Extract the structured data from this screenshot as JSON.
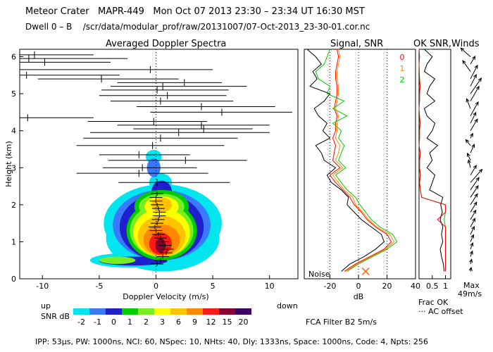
{
  "header": {
    "site": "Meteor Crater",
    "instrument": "MAPR-449",
    "datetime": "Mon Oct 07 2013 23:30 – 23:34 UT 16:30 MST",
    "dwell": "Dwell  0 –  B",
    "path": "/scr/data/modular_prof/raw/20131007/07-Oct-2013_23-30-01.cor.nc"
  },
  "panels": {
    "spectra_title": "Averaged Doppler Spectra",
    "snr_title": "Signal, SNR",
    "ok_title": "OK SNR,Winds"
  },
  "footer": {
    "snr_db_label": "SNR dB",
    "up_label": "up",
    "down_label": "down",
    "noise_label": "Noise",
    "frac_ok_label": "Frac OK",
    "ac_offset_label": "··· AC offset",
    "max_label": "Max",
    "max_value": "49m/s",
    "fca_filter": "FCA Filter B2   5m/s",
    "params": "IPP: 53μs,  PW: 1000ns,  NCI: 60,  NSpec: 10,  NHts: 40,  Dly: 1333ns,  Space: 1000ns,  Code: 4,  Npts: 256"
  },
  "chart_data": [
    {
      "type": "heatmap",
      "title": "Averaged Doppler Spectra",
      "xlabel": "Doppler Velocity (m/s)",
      "ylabel": "Height (km)",
      "xlim": [
        -12,
        12.5
      ],
      "ylim": [
        0,
        6.2
      ],
      "xticks": [
        -10,
        -5,
        0,
        5,
        10
      ],
      "yticks": [
        0,
        1,
        2,
        3,
        4,
        5,
        6
      ],
      "colorbar": {
        "label": "SNR dB",
        "ticks": [
          "-2",
          "-1",
          "0",
          "1",
          "2",
          "3",
          "6",
          "9",
          "12",
          "15",
          "20"
        ],
        "colors": [
          "#00e5ee",
          "#3a78ff",
          "#1f1fcc",
          "#00cc00",
          "#77ee22",
          "#ffff00",
          "#ffc400",
          "#ff8800",
          "#ff1a1a",
          "#8b0030",
          "#3a0066"
        ]
      },
      "spread_bars": [
        {
          "h": 6.05,
          "lo": -12,
          "hi": -5.5,
          "c": -10.7
        },
        {
          "h": 5.95,
          "lo": -12,
          "hi": -2.5,
          "c": -11.2
        },
        {
          "h": 5.85,
          "lo": -12,
          "hi": -4.0,
          "c": -9.8
        },
        {
          "h": 5.65,
          "lo": -12,
          "hi": 5.0,
          "c": -0.5
        },
        {
          "h": 5.5,
          "lo": -12,
          "hi": -3.2,
          "c": -11.4
        },
        {
          "h": 5.4,
          "lo": -10.4,
          "hi": 2.0,
          "c": -4.8
        },
        {
          "h": 5.3,
          "lo": -3.4,
          "hi": 5.8,
          "c": 2.5
        },
        {
          "h": 5.2,
          "lo": -4.0,
          "hi": 8.0,
          "c": 0.6
        },
        {
          "h": 5.1,
          "lo": -4.8,
          "hi": 6.4,
          "c": 0.1
        },
        {
          "h": 4.95,
          "lo": -5.0,
          "hi": 6.2,
          "c": 1.0
        },
        {
          "h": 4.8,
          "lo": -4.0,
          "hi": 6.8,
          "c": 0.4
        },
        {
          "h": 4.65,
          "lo": -1.7,
          "hi": 10.5,
          "c": 4.0
        },
        {
          "h": 4.5,
          "lo": -0.5,
          "hi": 12.0,
          "c": 5.8
        },
        {
          "h": 4.35,
          "lo": -12,
          "hi": -5.5,
          "c": -11.3
        },
        {
          "h": 4.25,
          "lo": -6.0,
          "hi": 4.5,
          "c": -0.2
        },
        {
          "h": 4.15,
          "lo": -3.4,
          "hi": 10.0,
          "c": 4.0
        },
        {
          "h": 4.05,
          "lo": -2.0,
          "hi": 8.5,
          "c": 4.2
        },
        {
          "h": 3.95,
          "lo": -5.8,
          "hi": 10.0,
          "c": 2.0
        },
        {
          "h": 3.8,
          "lo": -6.4,
          "hi": 7.2,
          "c": 0.4
        },
        {
          "h": 3.6,
          "lo": -7.0,
          "hi": 6.0,
          "c": -0.3
        },
        {
          "h": 3.35,
          "lo": -5.0,
          "hi": 3.0,
          "c": -1.5
        },
        {
          "h": 3.2,
          "lo": -4.2,
          "hi": 8.0,
          "c": 2.6
        },
        {
          "h": 3.0,
          "lo": -4.7,
          "hi": 3.6,
          "c": -1.2
        },
        {
          "h": 2.85,
          "lo": -7.0,
          "hi": 4.6,
          "c": -1.5
        },
        {
          "h": 2.6,
          "lo": -3.3,
          "hi": 6.5,
          "c": 0.1
        }
      ],
      "mean_ticks": {
        "heights": [
          0.4,
          0.5,
          0.6,
          0.7,
          0.8,
          0.9,
          1.0,
          1.1,
          1.2,
          1.3,
          1.4,
          1.5,
          1.6,
          1.7,
          1.8,
          1.9,
          2.0,
          2.1,
          2.2,
          2.3
        ],
        "velocities": [
          0.1,
          0.4,
          0.6,
          0.9,
          1.0,
          0.8,
          0.6,
          0.4,
          0.2,
          0.0,
          -0.1,
          0.1,
          0.2,
          0.3,
          0.3,
          0.2,
          0.1,
          0.0,
          0.0,
          0.1
        ]
      }
    },
    {
      "type": "line",
      "title": "Signal, SNR",
      "xlabel": "dB",
      "xlim": [
        -38,
        40
      ],
      "ylim": [
        0,
        6.2
      ],
      "xticks": [
        -20,
        0,
        20,
        40
      ],
      "dotted_x": [
        -20,
        0,
        20
      ],
      "heights": [
        0.2,
        0.4,
        0.6,
        0.8,
        1.0,
        1.2,
        1.4,
        1.6,
        1.8,
        2.0,
        2.2,
        2.4,
        2.6,
        2.8,
        3.0,
        3.2,
        3.4,
        3.6,
        3.8,
        4.0,
        4.2,
        4.4,
        4.6,
        4.8,
        5.0,
        5.2,
        5.4,
        5.6,
        5.8,
        6.0,
        6.2
      ],
      "series": [
        {
          "name": "signal",
          "color": "#000000",
          "values": [
            -12,
            -6,
            4,
            12,
            18,
            16,
            9,
            2,
            -3,
            -8,
            -7,
            -12,
            -19,
            -22,
            -16,
            -24,
            -26,
            -30,
            -20,
            -25,
            -22,
            -28,
            -31,
            -24,
            -20,
            -34,
            -29,
            -32,
            -26,
            -30,
            -36
          ]
        },
        {
          "name": "0",
          "color": "#ff0000",
          "values": [
            -10,
            -2,
            8,
            18,
            23,
            20,
            12,
            6,
            2,
            -3,
            -6,
            -11,
            -16,
            -20,
            -13,
            -18,
            -17,
            -16,
            -18,
            -16,
            -16,
            -15,
            -17,
            -16,
            -15,
            -15,
            -16,
            -16,
            -15,
            -14,
            -15
          ]
        },
        {
          "name": "1",
          "color": "#ff8c00",
          "values": [
            -9,
            -1,
            9,
            19,
            25,
            22,
            13,
            7,
            3,
            -2,
            -4,
            -10,
            -14,
            -18,
            -11,
            -16,
            -14,
            -13,
            -16,
            -15,
            -15,
            -14,
            -16,
            -15,
            -14,
            -14,
            -15,
            -15,
            -14,
            -13,
            -14
          ]
        },
        {
          "name": "2",
          "color": "#00cc00",
          "values": [
            -8,
            0,
            10,
            20,
            27,
            24,
            15,
            9,
            5,
            1,
            -2,
            -8,
            -12,
            -16,
            -9,
            -14,
            -12,
            -10,
            -14,
            -12,
            -18,
            -8,
            -18,
            -10,
            -22,
            -20,
            -28,
            -30,
            -24,
            -22,
            -20
          ]
        }
      ],
      "legend": [
        "0",
        "1",
        "2"
      ],
      "noise_label": "Noise",
      "noise_marker": {
        "x": 5,
        "h": 0.2
      }
    },
    {
      "type": "line",
      "title": "OK SNR,Winds",
      "xlim": [
        0,
        1.2
      ],
      "xticks": [
        "0.5",
        "1"
      ],
      "xlabel": "Frac OK",
      "ylim": [
        0,
        6.2
      ],
      "heights": [
        0.2,
        0.4,
        0.6,
        0.8,
        1.0,
        1.2,
        1.4,
        1.6,
        1.8,
        2.0,
        2.2,
        2.4,
        2.6,
        2.8,
        3.0,
        3.2,
        3.4,
        3.6,
        3.8,
        4.0,
        4.2,
        4.4,
        4.6,
        4.8,
        5.0,
        5.2,
        5.4,
        5.6,
        5.8,
        6.0,
        6.2
      ],
      "series": [
        {
          "name": "snr_frac",
          "color": "#000000",
          "values": [
            0.95,
            0.92,
            0.85,
            0.8,
            0.9,
            0.85,
            0.9,
            0.8,
            0.88,
            0.82,
            0.9,
            0.4,
            0.5,
            0.6,
            0.3,
            0.5,
            0.4,
            0.7,
            0.3,
            0.5,
            0.6,
            0.3,
            0.2,
            0.6,
            0.3,
            0.4,
            0.6,
            0.2,
            0.3,
            0.5,
            0.2
          ]
        },
        {
          "name": "wind_frac",
          "color": "#00cc00",
          "values": [
            1.0,
            1.0,
            1.0,
            1.0,
            1.0,
            1.0,
            1.0,
            0.95,
            1.0,
            1.0,
            0.1,
            0.05,
            0.02,
            0.05,
            0.02,
            0.02,
            0.05,
            0.0,
            0.02,
            0.02,
            0.04,
            0.02,
            0.0,
            0.02,
            0.02,
            0.04,
            0.02,
            0.01,
            0.0,
            0.02,
            0.0
          ]
        },
        {
          "name": "red_frac",
          "color": "#ff0000",
          "values": [
            1.0,
            1.0,
            1.0,
            1.0,
            1.0,
            1.0,
            1.0,
            0.7,
            1.0,
            1.0,
            0.1,
            0.05,
            0.02,
            0.05,
            0.02,
            0.02,
            0.05,
            0.0,
            0.02,
            0.02,
            0.04,
            0.02,
            0.0,
            0.02,
            0.02,
            0.04,
            0.02,
            0.01,
            0.0,
            0.02,
            0.0
          ]
        }
      ],
      "wind_arrows": {
        "heights": [
          0.2,
          0.4,
          0.6,
          0.8,
          1.0,
          1.2,
          1.4,
          1.6,
          1.8,
          2.0,
          2.2,
          2.4,
          2.6,
          2.8,
          3.0,
          3.2,
          3.4,
          3.6,
          3.8,
          4.0,
          4.2,
          4.4,
          4.6,
          4.8,
          5.0,
          5.2,
          5.4,
          5.6,
          5.8,
          6.0
        ],
        "u": [
          2,
          3,
          5,
          6,
          8,
          10,
          12,
          14,
          16,
          18,
          20,
          22,
          30,
          15,
          -5,
          -8,
          10,
          -12,
          6,
          18,
          14,
          20,
          -10,
          22,
          28,
          15,
          18,
          -20,
          12,
          -25
        ],
        "v": [
          10,
          12,
          14,
          16,
          18,
          20,
          22,
          24,
          26,
          28,
          30,
          32,
          34,
          25,
          20,
          18,
          22,
          15,
          12,
          30,
          28,
          36,
          25,
          38,
          40,
          30,
          35,
          28,
          20,
          22
        ],
        "max_speed": "49m/s"
      }
    }
  ]
}
